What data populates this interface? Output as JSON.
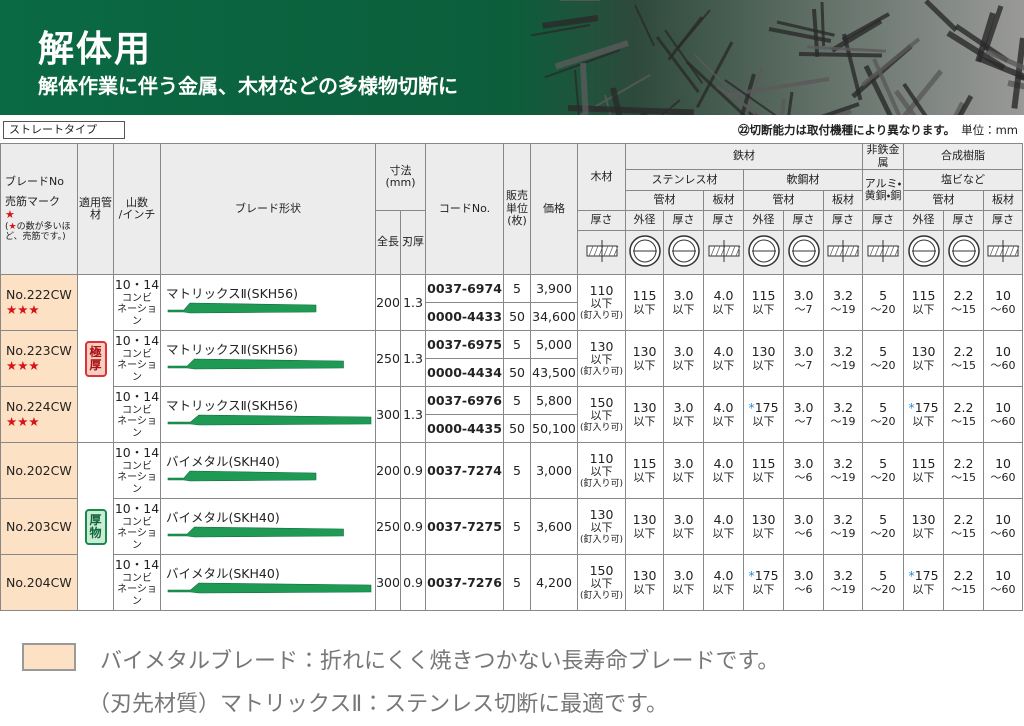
{
  "header": {
    "title": "解体用",
    "subtitle": "解体作業に伴う金属、木材などの多様物切断に"
  },
  "type_label": "ストレートタイプ",
  "note": "㉒切断能力は取付機種により異なります。",
  "unit": "単位：mm",
  "table": {
    "head": {
      "blade_no": "ブレードNo",
      "mark_label": "売筋マーク",
      "mark_star": "★",
      "mark_note": [
        "(",
        "★",
        "の数が多いほど、売筋です。)"
      ],
      "pipe": "適用管材",
      "teeth": [
        "山数",
        "/インチ"
      ],
      "shape": "ブレード形状",
      "size": [
        "寸法",
        "(mm)"
      ],
      "length": "全長",
      "thickness": "刃厚",
      "code": "コードNo.",
      "sales_unit": [
        "販売",
        "単位",
        "(枚)"
      ],
      "price": "価格",
      "wood": "木材",
      "iron": "鉄材",
      "nonferrous": "非鉄金属",
      "resin": "合成樹脂",
      "stainless": "ステンレス材",
      "mild_steel": "軟鋼材",
      "aluminum": [
        "アルミ・",
        "黄銅・銅"
      ],
      "pvc": "塩ビなど",
      "group_row": [
        "管材",
        "板材",
        "管材",
        "板材",
        "管材",
        "板材"
      ],
      "measure_row": [
        "厚さ",
        "外径",
        "厚さ",
        "厚さ",
        "外径",
        "厚さ",
        "厚さ",
        "厚さ",
        "外径",
        "厚さ",
        "厚さ"
      ]
    },
    "rows": [
      {
        "no": "No.222CW",
        "stars": "★★★",
        "pipe": "極厚",
        "teeth": [
          "10・14",
          "コンビ",
          "ネーション"
        ],
        "shape": "マトリックスⅡ(SKH56)",
        "length": 200,
        "thickness": 1.3,
        "codes": [
          {
            "code": "0037-6974",
            "unit": 5,
            "price": "3,900"
          },
          {
            "code": "0000-4433",
            "unit": 50,
            "price": "34,600"
          }
        ],
        "wood": [
          "110",
          "以下",
          "(釘入り可)"
        ],
        "capacity": [
          [
            "115",
            "以下"
          ],
          [
            "3.0",
            "以下"
          ],
          [
            "4.0",
            "以下"
          ],
          [
            "115",
            "以下"
          ],
          [
            "3.0",
            "～7"
          ],
          [
            "3.2",
            "～19"
          ],
          [
            "5",
            "～20"
          ],
          [
            "115",
            "以下"
          ],
          [
            "2.2",
            "～15"
          ],
          [
            "10",
            "～60"
          ]
        ]
      },
      {
        "no": "No.223CW",
        "stars": "★★★",
        "teeth": [
          "10・14",
          "コンビ",
          "ネーション"
        ],
        "shape": "マトリックスⅡ(SKH56)",
        "length": 250,
        "thickness": 1.3,
        "codes": [
          {
            "code": "0037-6975",
            "unit": 5,
            "price": "5,000"
          },
          {
            "code": "0000-4434",
            "unit": 50,
            "price": "43,500"
          }
        ],
        "wood": [
          "130",
          "以下",
          "(釘入り可)"
        ],
        "capacity": [
          [
            "130",
            "以下"
          ],
          [
            "3.0",
            "以下"
          ],
          [
            "4.0",
            "以下"
          ],
          [
            "130",
            "以下"
          ],
          [
            "3.0",
            "～7"
          ],
          [
            "3.2",
            "～19"
          ],
          [
            "5",
            "～20"
          ],
          [
            "130",
            "以下"
          ],
          [
            "2.2",
            "～15"
          ],
          [
            "10",
            "～60"
          ]
        ]
      },
      {
        "no": "No.224CW",
        "stars": "★★★",
        "teeth": [
          "10・14",
          "コンビ",
          "ネーション"
        ],
        "shape": "マトリックスⅡ(SKH56)",
        "length": 300,
        "thickness": 1.3,
        "codes": [
          {
            "code": "0037-6976",
            "unit": 5,
            "price": "5,800"
          },
          {
            "code": "0000-4435",
            "unit": 50,
            "price": "50,100"
          }
        ],
        "wood": [
          "150",
          "以下",
          "(釘入り可)"
        ],
        "capacity": [
          [
            "130",
            "以下"
          ],
          [
            "3.0",
            "以下"
          ],
          [
            "4.0",
            "以下"
          ],
          [
            "*",
            "175",
            "以下"
          ],
          [
            "3.0",
            "～7"
          ],
          [
            "3.2",
            "～19"
          ],
          [
            "5",
            "～20"
          ],
          [
            "*",
            "175",
            "以下"
          ],
          [
            "2.2",
            "～15"
          ],
          [
            "10",
            "～60"
          ]
        ]
      },
      {
        "no": "No.202CW",
        "pipe": "厚物",
        "teeth": [
          "10・14",
          "コンビ",
          "ネーション"
        ],
        "shape": "バイメタル(SKH40)",
        "length": 200,
        "thickness": 0.9,
        "codes": [
          {
            "code": "0037-7274",
            "unit": 5,
            "price": "3,000"
          }
        ],
        "wood": [
          "110",
          "以下",
          "(釘入り可)"
        ],
        "capacity": [
          [
            "115",
            "以下"
          ],
          [
            "3.0",
            "以下"
          ],
          [
            "4.0",
            "以下"
          ],
          [
            "115",
            "以下"
          ],
          [
            "3.0",
            "～6"
          ],
          [
            "3.2",
            "～19"
          ],
          [
            "5",
            "～20"
          ],
          [
            "115",
            "以下"
          ],
          [
            "2.2",
            "～15"
          ],
          [
            "10",
            "～60"
          ]
        ]
      },
      {
        "no": "No.203CW",
        "teeth": [
          "10・14",
          "コンビ",
          "ネーション"
        ],
        "shape": "バイメタル(SKH40)",
        "length": 250,
        "thickness": 0.9,
        "codes": [
          {
            "code": "0037-7275",
            "unit": 5,
            "price": "3,600"
          }
        ],
        "wood": [
          "130",
          "以下",
          "(釘入り可)"
        ],
        "capacity": [
          [
            "130",
            "以下"
          ],
          [
            "3.0",
            "以下"
          ],
          [
            "4.0",
            "以下"
          ],
          [
            "130",
            "以下"
          ],
          [
            "3.0",
            "～6"
          ],
          [
            "3.2",
            "～19"
          ],
          [
            "5",
            "～20"
          ],
          [
            "130",
            "以下"
          ],
          [
            "2.2",
            "～15"
          ],
          [
            "10",
            "～60"
          ]
        ]
      },
      {
        "no": "No.204CW",
        "teeth": [
          "10・14",
          "コンビ",
          "ネーション"
        ],
        "shape": "バイメタル(SKH40)",
        "length": 300,
        "thickness": 0.9,
        "codes": [
          {
            "code": "0037-7276",
            "unit": 5,
            "price": "4,200"
          }
        ],
        "wood": [
          "150",
          "以下",
          "(釘入り可)"
        ],
        "capacity": [
          [
            "130",
            "以下"
          ],
          [
            "3.0",
            "以下"
          ],
          [
            "4.0",
            "以下"
          ],
          [
            "*",
            "175",
            "以下"
          ],
          [
            "3.0",
            "～6"
          ],
          [
            "3.2",
            "～19"
          ],
          [
            "5",
            "～20"
          ],
          [
            "*",
            "175",
            "以下"
          ],
          [
            "2.2",
            "～15"
          ],
          [
            "10",
            "～60"
          ]
        ]
      }
    ]
  },
  "legend": {
    "bimetal": "バイメタルブレード：折れにくく焼きつかない長寿命ブレードです。",
    "matrix": "（刃先材質）マトリックスⅡ：ステンレス切断に最適です。"
  }
}
